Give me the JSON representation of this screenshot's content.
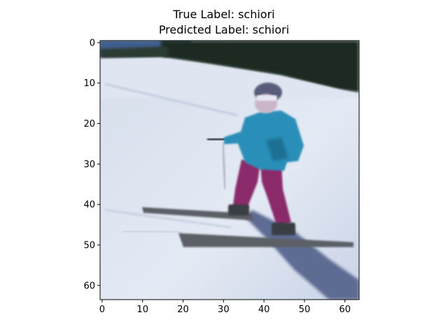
{
  "figure": {
    "title_true": "True Label: schiori",
    "title_predicted": "Predicted Label: schiori"
  },
  "image": {
    "description_icon": "photo-icon",
    "x_ticks": [
      "0",
      "10",
      "20",
      "30",
      "40",
      "50",
      "60"
    ],
    "y_ticks": [
      "0",
      "10",
      "20",
      "30",
      "40",
      "50",
      "60"
    ],
    "x_range": [
      -0.5,
      63.5
    ],
    "y_range": [
      -0.5,
      63.5
    ],
    "colors": {
      "sky": "#3f5f8f",
      "trees": "#1c2a22",
      "snow": "#dfe6f1",
      "snow_shadow": "#b8c3d8",
      "jacket": "#2a8fb8",
      "pants": "#8b2a6a",
      "helmet": "#5a5d7a",
      "skis": "#5b5f66",
      "shadow": "#5d6c93"
    }
  }
}
